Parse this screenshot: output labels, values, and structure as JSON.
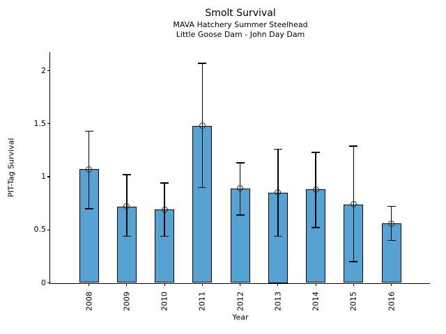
{
  "chart_data": {
    "type": "bar",
    "title": "Smolt Survival",
    "subtitle_lines": [
      "MAVA Hatchery Summer Steelhead",
      "Little Goose Dam - John Day Dam"
    ],
    "xlabel": "Year",
    "ylabel": "PIT-Tag Survival",
    "categories": [
      "2008",
      "2009",
      "2010",
      "2011",
      "2012",
      "2013",
      "2014",
      "2015",
      "2016"
    ],
    "values": [
      1.07,
      0.72,
      0.69,
      1.48,
      0.89,
      0.85,
      0.88,
      0.74,
      0.56
    ],
    "error_low": [
      0.7,
      0.44,
      0.44,
      0.9,
      0.64,
      0.44,
      0.52,
      0.2,
      0.4
    ],
    "error_high": [
      1.43,
      1.02,
      0.94,
      2.07,
      1.13,
      1.26,
      1.23,
      1.29,
      0.72
    ],
    "ylim": [
      0,
      2.17
    ],
    "ytick_values": [
      0,
      0.5,
      1,
      1.5,
      2
    ],
    "ytick_labels": [
      "0",
      "0.5",
      "1",
      "1.5",
      "2"
    ],
    "grid": false,
    "legend": null,
    "marker": "open-circle",
    "bar_color": "#56A3D3",
    "bar_edge_color": "#000000",
    "error_color": "#000000",
    "text_color": "#000000",
    "background_color": "#ffffff"
  }
}
